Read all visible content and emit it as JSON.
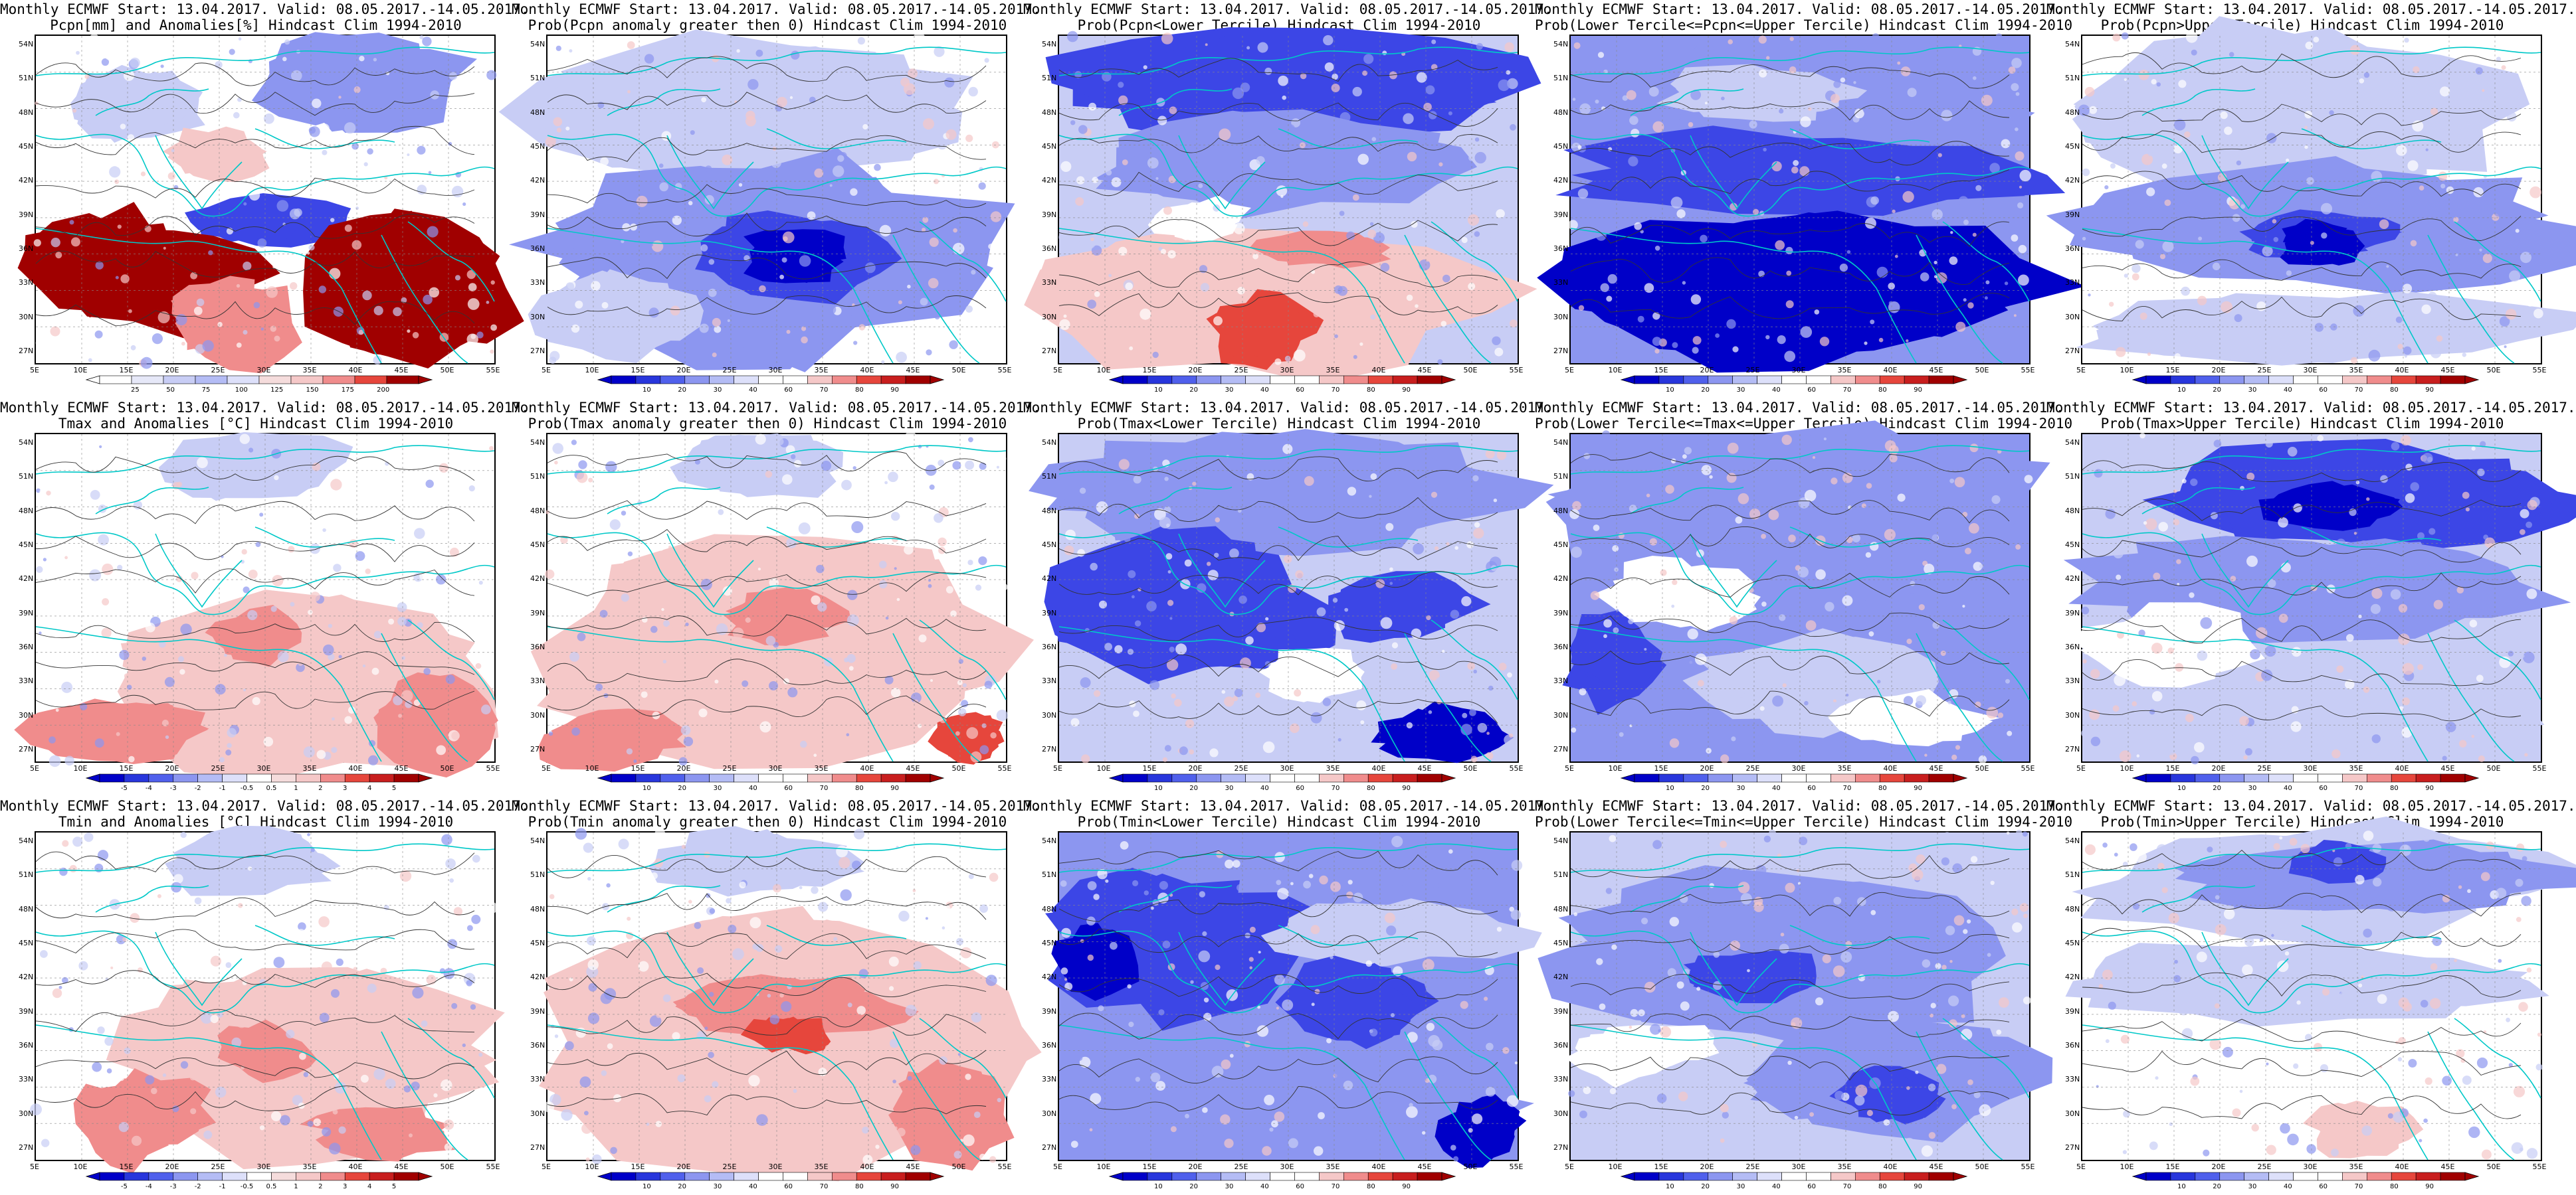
{
  "panels": [
    {
      "title1": "Monthly ECMWF Start: 13.04.2017. Valid: 08.05.2017.-14.05.2017.",
      "title2": "Pcpn[mm] and Anomalies[%] Hindcast Clim 1994-2010",
      "scale": "pcpn_anom",
      "cbar": [
        "25",
        "50",
        "75",
        "100",
        "125",
        "150",
        "175",
        "200"
      ]
    },
    {
      "title1": "Monthly ECMWF Start: 13.04.2017. Valid: 08.05.2017.-14.05.2017.",
      "title2": "Prob(Pcpn anomaly greater then 0) Hindcast Clim 1994-2010",
      "scale": "prob",
      "cbar": [
        "10",
        "20",
        "30",
        "40",
        "60",
        "70",
        "80",
        "90"
      ]
    },
    {
      "title1": "Monthly ECMWF Start: 13.04.2017. Valid: 08.05.2017.-14.05.2017.",
      "title2": "Prob(Pcpn<Lower Tercile) Hindcast Clim 1994-2010",
      "scale": "prob",
      "cbar": [
        "10",
        "20",
        "30",
        "40",
        "60",
        "70",
        "80",
        "90"
      ]
    },
    {
      "title1": "Monthly ECMWF Start: 13.04.2017. Valid: 08.05.2017.-14.05.2017.",
      "title2": "Prob(Lower Tercile<=Pcpn<=Upper Tercile) Hindcast Clim 1994-2010",
      "scale": "prob",
      "cbar": [
        "10",
        "20",
        "30",
        "40",
        "60",
        "70",
        "80",
        "90"
      ]
    },
    {
      "title1": "Monthly ECMWF Start: 13.04.2017. Valid: 08.05.2017.-14.05.2017.",
      "title2": "Prob(Pcpn>Upper Tercile) Hindcast Clim 1994-2010",
      "scale": "prob",
      "cbar": [
        "10",
        "20",
        "30",
        "40",
        "60",
        "70",
        "80",
        "90"
      ]
    },
    {
      "title1": "Monthly ECMWF Start: 13.04.2017. Valid: 08.05.2017.-14.05.2017.",
      "title2": "Tmax and Anomalies [°C] Hindcast Clim 1994-2010",
      "scale": "temp_anom",
      "cbar": [
        "-5",
        "-4",
        "-3",
        "-2",
        "-1",
        "-0.5",
        "0.5",
        "1",
        "2",
        "3",
        "4",
        "5"
      ]
    },
    {
      "title1": "Monthly ECMWF Start: 13.04.2017. Valid: 08.05.2017.-14.05.2017.",
      "title2": "Prob(Tmax anomaly greater then 0) Hindcast Clim 1994-2010",
      "scale": "prob",
      "cbar": [
        "10",
        "20",
        "30",
        "40",
        "60",
        "70",
        "80",
        "90"
      ]
    },
    {
      "title1": "Monthly ECMWF Start: 13.04.2017. Valid: 08.05.2017.-14.05.2017.",
      "title2": "Prob(Tmax<Lower Tercile) Hindcast Clim 1994-2010",
      "scale": "prob",
      "cbar": [
        "10",
        "20",
        "30",
        "40",
        "60",
        "70",
        "80",
        "90"
      ]
    },
    {
      "title1": "Monthly ECMWF Start: 13.04.2017. Valid: 08.05.2017.-14.05.2017.",
      "title2": "Prob(Lower Tercile<=Tmax<=Upper Tercile) Hindcast Clim 1994-2010",
      "scale": "prob",
      "cbar": [
        "10",
        "20",
        "30",
        "40",
        "60",
        "70",
        "80",
        "90"
      ]
    },
    {
      "title1": "Monthly ECMWF Start: 13.04.2017. Valid: 08.05.2017.-14.05.2017.",
      "title2": "Prob(Tmax>Upper Tercile) Hindcast Clim 1994-2010",
      "scale": "prob",
      "cbar": [
        "10",
        "20",
        "30",
        "40",
        "60",
        "70",
        "80",
        "90"
      ]
    },
    {
      "title1": "Monthly ECMWF Start: 13.04.2017. Valid: 08.05.2017.-14.05.2017.",
      "title2": "Tmin and Anomalies [°C] Hindcast Clim 1994-2010",
      "scale": "temp_anom",
      "cbar": [
        "-5",
        "-4",
        "-3",
        "-2",
        "-1",
        "-0.5",
        "0.5",
        "1",
        "2",
        "3",
        "4",
        "5"
      ]
    },
    {
      "title1": "Monthly ECMWF Start: 13.04.2017. Valid: 08.05.2017.-14.05.2017.",
      "title2": "Prob(Tmin anomaly greater then 0) Hindcast Clim 1994-2010",
      "scale": "prob",
      "cbar": [
        "10",
        "20",
        "30",
        "40",
        "60",
        "70",
        "80",
        "90"
      ]
    },
    {
      "title1": "Monthly ECMWF Start: 13.04.2017. Valid: 08.05.2017.-14.05.2017.",
      "title2": "Prob(Tmin<Lower Tercile) Hindcast Clim 1994-2010",
      "scale": "prob",
      "cbar": [
        "10",
        "20",
        "30",
        "40",
        "60",
        "70",
        "80",
        "90"
      ]
    },
    {
      "title1": "Monthly ECMWF Start: 13.04.2017. Valid: 08.05.2017.-14.05.2017.",
      "title2": "Prob(Lower Tercile<=Tmin<=Upper Tercile) Hindcast Clim 1994-2010",
      "scale": "prob",
      "cbar": [
        "10",
        "20",
        "30",
        "40",
        "60",
        "70",
        "80",
        "90"
      ]
    },
    {
      "title1": "Monthly ECMWF Start: 13.04.2017. Valid: 08.05.2017.-14.05.2017.",
      "title2": "Prob(Tmin>Upper Tercile) Hindcast Clim 1994-2010",
      "scale": "prob",
      "cbar": [
        "10",
        "20",
        "30",
        "40",
        "60",
        "70",
        "80",
        "90"
      ]
    }
  ],
  "axes": {
    "lat": [
      "54N",
      "51N",
      "48N",
      "45N",
      "42N",
      "39N",
      "36N",
      "33N",
      "30N",
      "27N"
    ],
    "lon": [
      "5E",
      "10E",
      "15E",
      "20E",
      "25E",
      "30E",
      "35E",
      "40E",
      "45E",
      "50E",
      "55E"
    ]
  },
  "colors": {
    "blue_dark": "#0000c8",
    "blue_mid": "#3c46e6",
    "blue_light": "#8c96f0",
    "blue_pale": "#c8cdf5",
    "red_pale": "#f5c8c8",
    "red_light": "#f08c8c",
    "red_mid": "#e6463c",
    "red_dark": "#a00000",
    "coast": "#00c8c8",
    "contour": "#333333"
  }
}
